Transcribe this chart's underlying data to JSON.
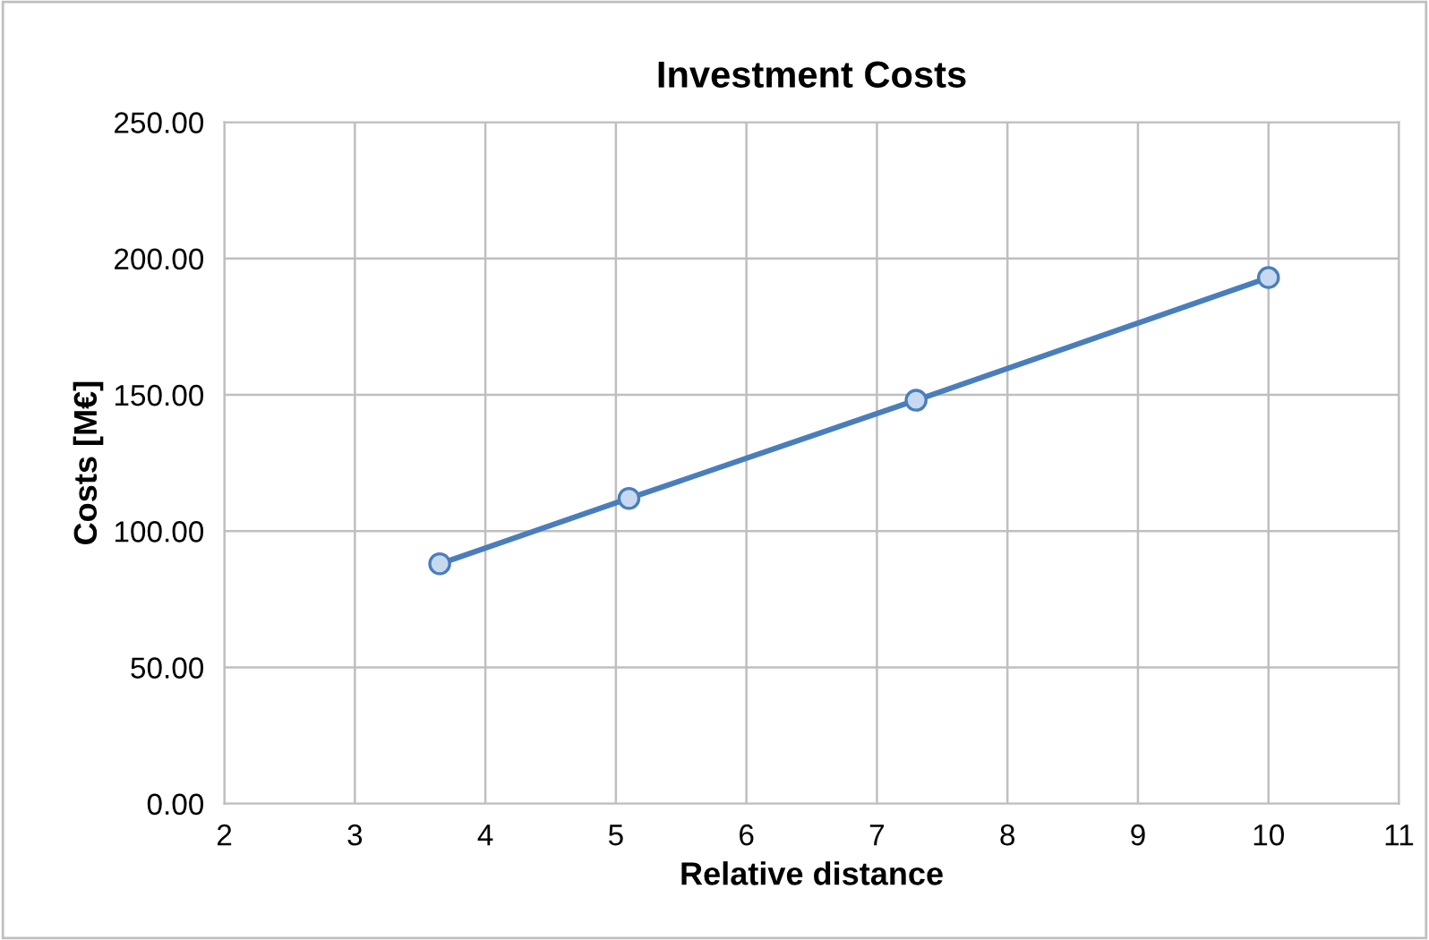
{
  "chart_data": {
    "type": "line",
    "title": "Investment Costs",
    "xlabel": "Relative distance",
    "ylabel": "Costs [M€]",
    "x": [
      3.65,
      5.1,
      7.3,
      10
    ],
    "series": [
      {
        "color": "#4a7ebb",
        "values": [
          88,
          112,
          148,
          193
        ]
      }
    ],
    "xlim": [
      2,
      11
    ],
    "xticks": [
      2,
      3,
      4,
      5,
      6,
      7,
      8,
      9,
      10,
      11
    ],
    "ylim": [
      0,
      250
    ],
    "yticks": [
      {
        "value": 0,
        "label": "0.00"
      },
      {
        "value": 50,
        "label": "50.00"
      },
      {
        "value": 100,
        "label": "100.00"
      },
      {
        "value": 150,
        "label": "150.00"
      },
      {
        "value": 200,
        "label": "200.00"
      },
      {
        "value": 250,
        "label": "250.00"
      }
    ],
    "grid": true,
    "marker": "circle",
    "line_style": "solid"
  }
}
